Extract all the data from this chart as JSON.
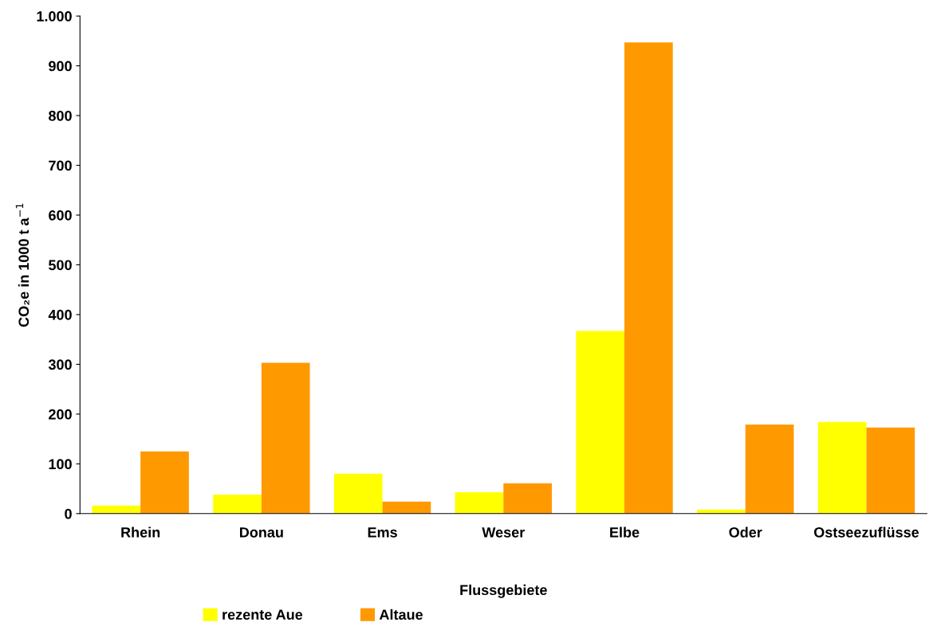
{
  "chart_data": {
    "type": "bar",
    "categories": [
      "Rhein",
      "Donau",
      "Ems",
      "Weser",
      "Elbe",
      "Oder",
      "Ostseezuflüsse"
    ],
    "series": [
      {
        "name": "rezente Aue",
        "color": "#ffff00",
        "values": [
          16,
          38,
          80,
          43,
          367,
          8,
          184
        ]
      },
      {
        "name": "Altaue",
        "color": "#ff9900",
        "values": [
          125,
          303,
          24,
          61,
          947,
          179,
          173
        ]
      }
    ],
    "xlabel": "Flussgebiete",
    "ylabel": "CO₂e in 1000 t a$^{−1}$",
    "ylim": [
      0,
      1000
    ],
    "yticks": [
      0,
      100,
      200,
      300,
      400,
      500,
      600,
      700,
      800,
      900,
      {
        "value": 1000,
        "label": "1.000"
      }
    ],
    "grid": false,
    "legend": "bottom left"
  }
}
